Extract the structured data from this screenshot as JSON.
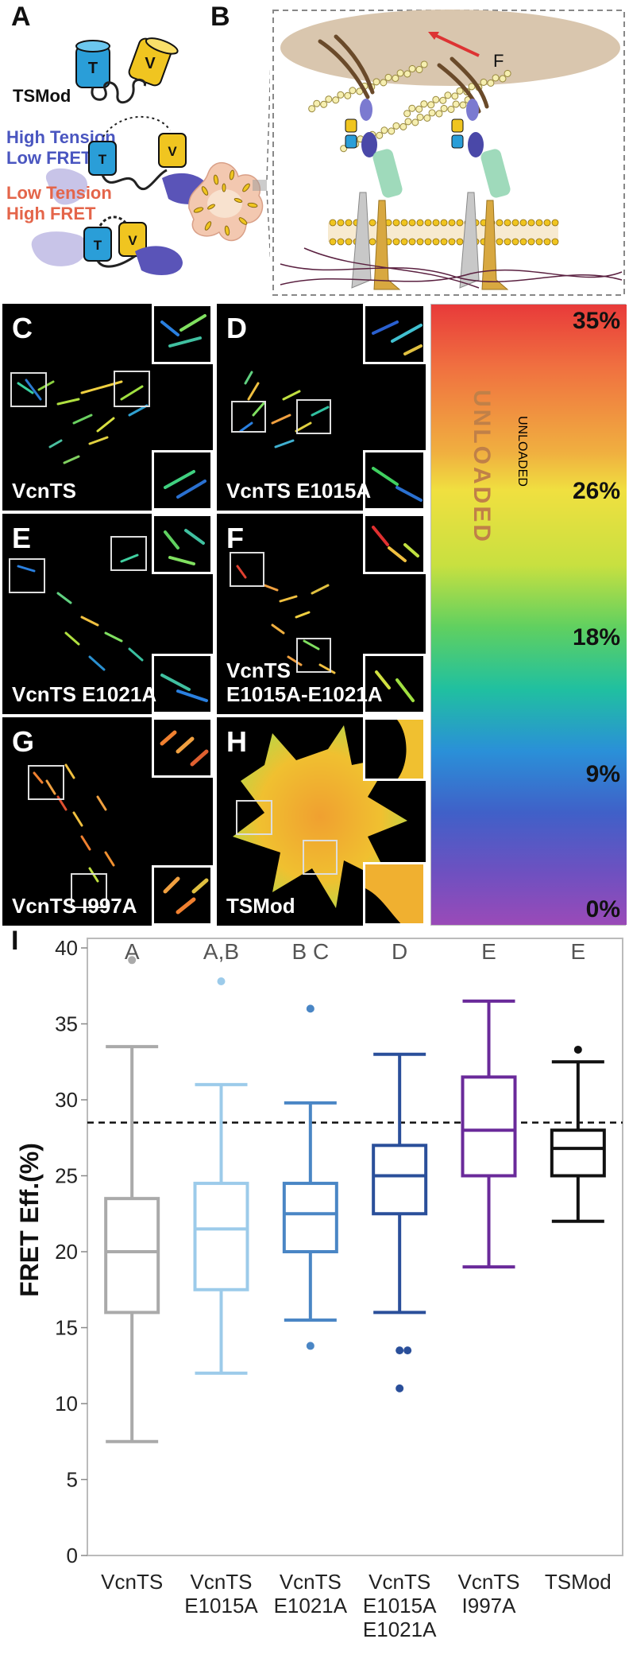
{
  "panels": {
    "A": "A",
    "B": "B",
    "C": "C",
    "D": "D",
    "E": "E",
    "F": "F",
    "G": "G",
    "H": "H",
    "I": "I"
  },
  "schematic": {
    "tsmod": "TSMod",
    "high_tension_1": "High Tension",
    "high_tension_2": "Low FRET",
    "low_tension_1": "Low Tension",
    "low_tension_2": "High FRET",
    "t": "T",
    "v": "V",
    "force": "F"
  },
  "micrographs": [
    {
      "letter": "C",
      "caption_1": "VcnTS",
      "caption_2": ""
    },
    {
      "letter": "D",
      "caption_1": "VcnTS E1015A",
      "caption_2": ""
    },
    {
      "letter": "E",
      "caption_1": "VcnTS E1021A",
      "caption_2": ""
    },
    {
      "letter": "F",
      "caption_1": "VcnTS",
      "caption_2": "E1015A-E1021A"
    },
    {
      "letter": "G",
      "caption_1": "VcnTS I997A",
      "caption_2": ""
    },
    {
      "letter": "H",
      "caption_1": "TSMod",
      "caption_2": ""
    }
  ],
  "colorbar": {
    "labels": [
      "35%",
      "26%",
      "18%",
      "9%",
      "0%"
    ],
    "unloaded": "UNLOADED"
  },
  "chart_data": {
    "type": "box",
    "ylabel": "FRET Eff.(%)",
    "ylim": [
      0,
      40
    ],
    "yticks": [
      0,
      5,
      10,
      15,
      20,
      25,
      30,
      35,
      40
    ],
    "reference_line": 28.5,
    "groups": [
      {
        "label_lines": [
          "VcnTS"
        ],
        "sig": "A",
        "color": "#aaaaaa",
        "min": 7.5,
        "q1": 16.0,
        "median": 20.0,
        "q3": 23.5,
        "max": 33.5,
        "outliers": [
          39.2
        ]
      },
      {
        "label_lines": [
          "VcnTS",
          "E1015A"
        ],
        "sig": "A,B",
        "color": "#9ccbea",
        "min": 12.0,
        "q1": 17.5,
        "median": 21.5,
        "q3": 24.5,
        "max": 31.0,
        "outliers": [
          37.8
        ]
      },
      {
        "label_lines": [
          "VcnTS",
          "E1021A"
        ],
        "sig": "B C",
        "color": "#4a86c5",
        "min": 15.5,
        "q1": 20.0,
        "median": 22.5,
        "q3": 24.5,
        "max": 29.8,
        "outliers": [
          13.8,
          36.0
        ]
      },
      {
        "label_lines": [
          "VcnTS",
          "E1015A",
          "E1021A"
        ],
        "sig": "D",
        "color": "#2a4f9a",
        "min": 16.0,
        "q1": 22.5,
        "median": 25.0,
        "q3": 27.0,
        "max": 33.0,
        "outliers": [
          13.5,
          13.5,
          11.0
        ]
      },
      {
        "label_lines": [
          "VcnTS",
          "I997A"
        ],
        "sig": "E",
        "color": "#6a2a9a",
        "min": 19.0,
        "q1": 25.0,
        "median": 28.0,
        "q3": 31.5,
        "max": 36.5,
        "outliers": []
      },
      {
        "label_lines": [
          "TSMod"
        ],
        "sig": "E",
        "color": "#111111",
        "min": 22.0,
        "q1": 25.0,
        "median": 26.8,
        "q3": 28.0,
        "max": 32.5,
        "outliers": [
          33.3
        ]
      }
    ]
  }
}
